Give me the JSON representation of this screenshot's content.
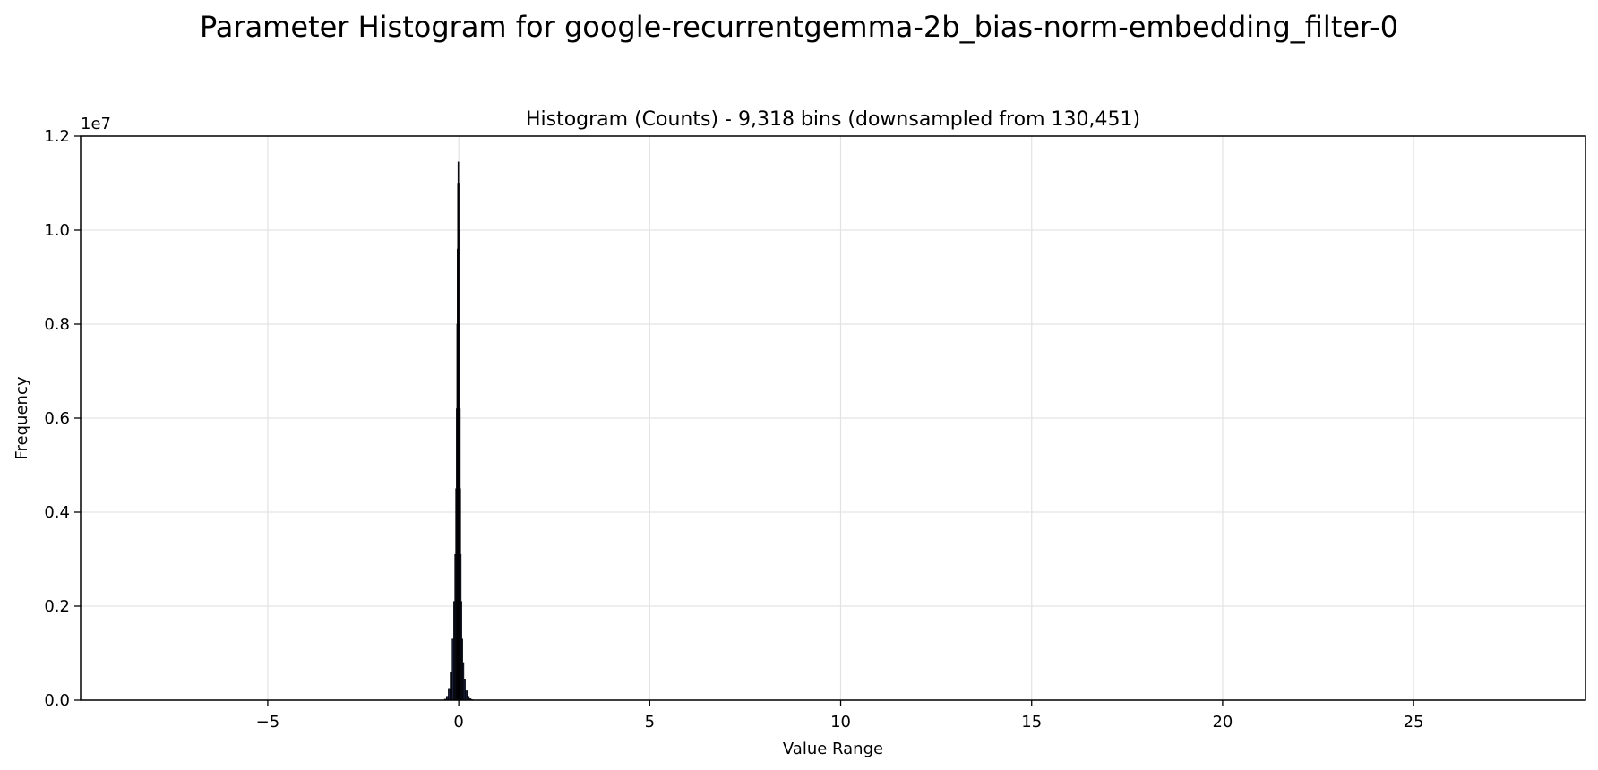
{
  "figure": {
    "title": "Parameter Histogram for google-recurrentgemma-2b_bias-norm-embedding_filter-0"
  },
  "chart_data": {
    "type": "bar",
    "title": "Histogram (Counts) - 9,318 bins (downsampled from 130,451)",
    "xlabel": "Value Range",
    "ylabel": "Frequency",
    "y_offset_label": "1e7",
    "xlim": [
      -9.9,
      29.5
    ],
    "ylim": [
      0,
      12000000
    ],
    "x_ticks": [
      -5,
      0,
      5,
      10,
      15,
      20,
      25
    ],
    "x_tick_labels": [
      "−5",
      "0",
      "5",
      "10",
      "15",
      "20",
      "25"
    ],
    "y_ticks": [
      0,
      2000000,
      4000000,
      6000000,
      8000000,
      10000000,
      12000000
    ],
    "y_tick_labels": [
      "0.0",
      "0.2",
      "0.4",
      "0.6",
      "0.8",
      "1.0",
      "1.2"
    ],
    "grid": true,
    "bar_color": "#1a1f3a",
    "edge_color": "#000000",
    "x": [
      -0.35,
      -0.3,
      -0.25,
      -0.2,
      -0.15,
      -0.12,
      -0.09,
      -0.07,
      -0.05,
      -0.04,
      -0.03,
      -0.02,
      -0.01,
      0.0,
      0.01,
      0.02,
      0.03,
      0.04,
      0.05,
      0.07,
      0.09,
      0.12,
      0.15,
      0.2,
      0.25,
      0.3,
      0.35
    ],
    "values": [
      20000,
      80000,
      250000,
      600000,
      1300000,
      2100000,
      3100000,
      4500000,
      6200000,
      8000000,
      9600000,
      11000000,
      11450000,
      11000000,
      10000000,
      8000000,
      6200000,
      4500000,
      3100000,
      2100000,
      1300000,
      800000,
      450000,
      200000,
      80000,
      30000,
      10000
    ]
  }
}
